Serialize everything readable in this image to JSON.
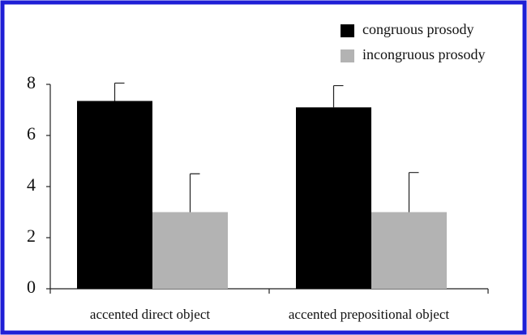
{
  "chart_data": {
    "type": "bar",
    "categories": [
      "accented direct object",
      "accented prepositional object"
    ],
    "series": [
      {
        "name": "congruous prosody",
        "color": "#000000",
        "values": [
          7.35,
          7.1
        ],
        "errors": [
          0.7,
          0.85
        ]
      },
      {
        "name": "incongruous prosody",
        "color": "#b3b3b3",
        "values": [
          3.0,
          3.0
        ],
        "errors": [
          1.5,
          1.55
        ]
      }
    ],
    "ylim": [
      0,
      8
    ],
    "yticks": [
      0,
      2,
      4,
      6,
      8
    ],
    "legend": "top-right",
    "frame_color": "#1f1fd6"
  }
}
